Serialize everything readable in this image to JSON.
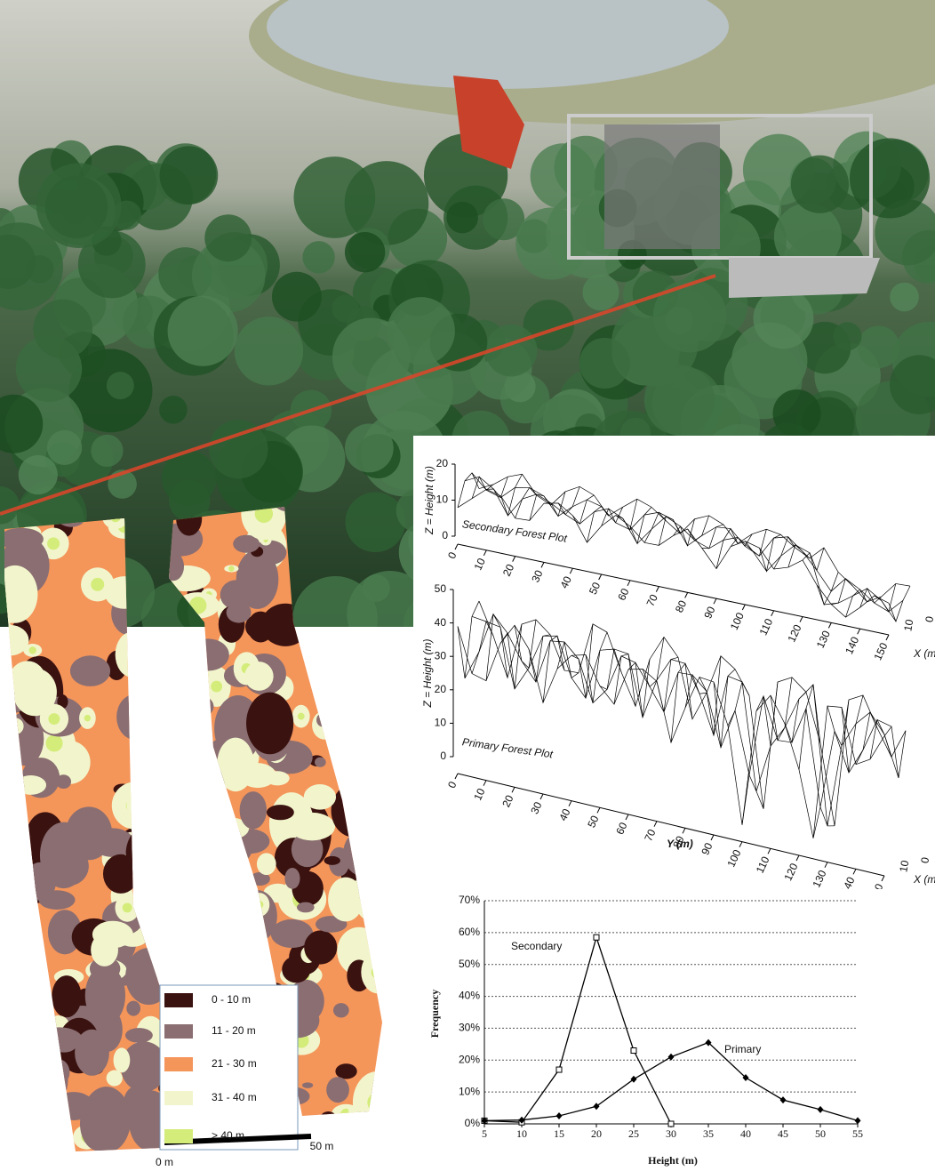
{
  "map": {
    "legend": [
      "0 - 10 m",
      "11 - 20 m",
      "21 - 30 m",
      "31 - 40 m",
      "> 40 m"
    ],
    "colors": [
      "#3a1210",
      "#8a6e72",
      "#f4955a",
      "#f2f5cc",
      "#d4ec7a"
    ],
    "scale": [
      "0 m",
      "50 m"
    ]
  },
  "surface_plots": [
    {
      "title": "Secondary Forest Plot",
      "z_label": "Z = Height (m)",
      "zticks": [
        0,
        10,
        20
      ],
      "yticks": [
        0,
        10,
        20,
        30,
        40,
        50,
        60,
        70,
        80,
        90,
        100,
        110,
        120,
        130,
        140,
        150
      ],
      "xticks": [
        10,
        0
      ],
      "x_label": "X (m)"
    },
    {
      "title": "Primary Forest Plot",
      "z_label": "Z = Height (m)",
      "zticks": [
        0,
        10,
        20,
        30,
        40,
        50
      ],
      "yticks": [
        0,
        10,
        20,
        30,
        40,
        50,
        60,
        70,
        80,
        90,
        100,
        110,
        120,
        130,
        140,
        150
      ],
      "xticks": [
        10,
        0
      ],
      "x_label": "X (m)",
      "y_label": "Y (m)"
    }
  ],
  "chart_data": {
    "type": "line",
    "xlabel": "Height (m)",
    "ylabel": "Frequency",
    "x": [
      5,
      10,
      15,
      20,
      25,
      30,
      35,
      40,
      45,
      50,
      55
    ],
    "series": [
      {
        "name": "Secondary",
        "color": "#000000",
        "marker": "square",
        "values": [
          1,
          0.5,
          17,
          58.5,
          23,
          0,
          null,
          null,
          null,
          null,
          null
        ]
      },
      {
        "name": "Primary",
        "color": "#000000",
        "marker": "diamond",
        "values": [
          1,
          1.2,
          2.5,
          5.5,
          14,
          21,
          25.5,
          14.5,
          7.5,
          4.5,
          1
        ]
      }
    ],
    "xlim": [
      5,
      55
    ],
    "ylim": [
      0,
      70
    ],
    "xticks": [
      5,
      10,
      15,
      20,
      25,
      30,
      35,
      40,
      45,
      50,
      55
    ],
    "yticks": [
      {
        "value": 0,
        "label": "0%"
      },
      {
        "value": 10,
        "label": "10%"
      },
      {
        "value": 20,
        "label": "20%"
      },
      {
        "value": 30,
        "label": "30%"
      },
      {
        "value": 40,
        "label": "40%"
      },
      {
        "value": 50,
        "label": "50%"
      },
      {
        "value": 60,
        "label": "60%"
      },
      {
        "value": 70,
        "label": "70%"
      }
    ],
    "grid": true
  }
}
